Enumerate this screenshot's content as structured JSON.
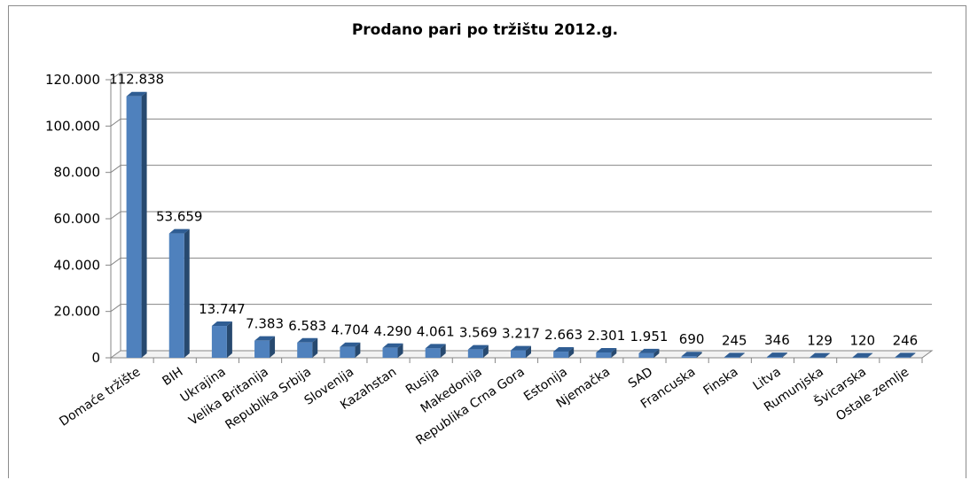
{
  "chart_data": {
    "type": "bar",
    "title": "Prodano pari po tržištu 2012.g.",
    "xlabel": "",
    "ylabel": "",
    "ylim": [
      0,
      120000
    ],
    "yticks": [
      "0",
      "20.000",
      "40.000",
      "60.000",
      "80.000",
      "100.000",
      "120.000"
    ],
    "categories": [
      "Domaće tržište",
      "BIH",
      "Ukrajina",
      "Velika Britanija",
      "Republika Srbija",
      "Slovenija",
      "Kazahstan",
      "Rusija",
      "Makedonija",
      "Republika Crna Gora",
      "Estonija",
      "Njemačka",
      "SAD",
      "Francuska",
      "Finska",
      "Litva",
      "Rumunjska",
      "Švicarska",
      "Ostale zemlje"
    ],
    "values": [
      112838,
      53659,
      13747,
      7383,
      6583,
      4704,
      4290,
      4061,
      3569,
      3217,
      2663,
      2301,
      1951,
      690,
      245,
      346,
      129,
      120,
      246
    ],
    "data_labels": [
      "112.838",
      "53.659",
      "13.747",
      "7.383",
      "6.583",
      "4.704",
      "4.290",
      "4.061",
      "3.569",
      "3.217",
      "2.663",
      "2.301",
      "1.951",
      "690",
      "245",
      "346",
      "129",
      "120",
      "246"
    ],
    "grid": true,
    "legend": "none",
    "style": "3d-column",
    "bar_color": "#4f81bd"
  }
}
